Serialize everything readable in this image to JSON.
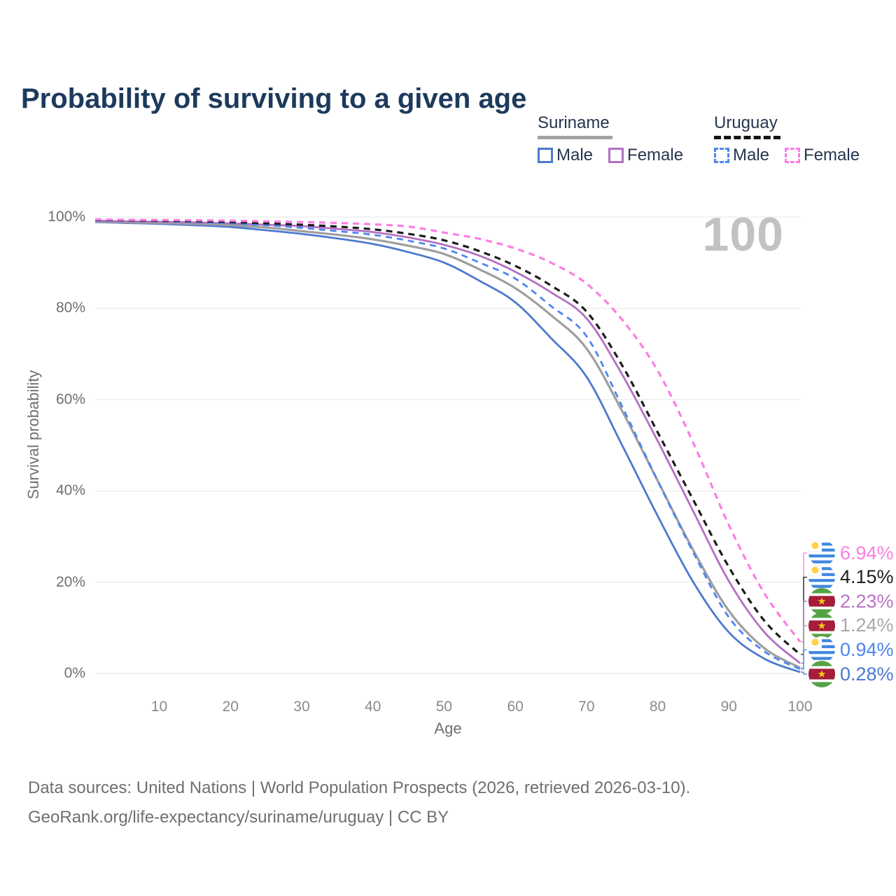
{
  "title": "Probability of surviving to a given age",
  "watermark": "100",
  "legend": {
    "groups": [
      {
        "label": "Suriname",
        "underline": {
          "style": "solid",
          "color": "#a3a3a3"
        },
        "items": [
          {
            "label": "Male",
            "color": "#4c79cf",
            "dash": false
          },
          {
            "label": "Female",
            "color": "#b271c2",
            "dash": false
          }
        ]
      },
      {
        "label": "Uruguay",
        "underline": {
          "style": "dashed",
          "color": "#151515"
        },
        "items": [
          {
            "label": "Male",
            "color": "#4d86f0",
            "dash": true
          },
          {
            "label": "Female",
            "color": "#fb7ee3",
            "dash": true
          }
        ]
      }
    ]
  },
  "axes": {
    "y": {
      "title": "Survival probability",
      "ticks": [
        "0%",
        "20%",
        "40%",
        "60%",
        "80%",
        "100%"
      ],
      "tick_values": [
        0,
        20,
        40,
        60,
        80,
        100
      ]
    },
    "x": {
      "title": "Age",
      "ticks": [
        "10",
        "20",
        "30",
        "40",
        "50",
        "60",
        "70",
        "80",
        "90",
        "100"
      ],
      "tick_values": [
        10,
        20,
        30,
        40,
        50,
        60,
        70,
        80,
        90,
        100
      ]
    }
  },
  "chart_data": {
    "type": "line",
    "title": "Probability of surviving to a given age",
    "xlabel": "Age",
    "ylabel": "Survival probability",
    "xlim": [
      1,
      100
    ],
    "ylim": [
      0,
      100
    ],
    "grid": "horizontal",
    "ages": [
      1,
      5,
      10,
      15,
      20,
      25,
      30,
      35,
      40,
      45,
      50,
      55,
      60,
      65,
      70,
      75,
      80,
      85,
      90,
      95,
      100
    ],
    "series": [
      {
        "name": "Suriname Male",
        "country": "Suriname",
        "sex": "male",
        "color": "#4c79cf",
        "dash": false,
        "width": 2.8,
        "values": [
          98.9,
          98.7,
          98.5,
          98.2,
          97.8,
          97.1,
          96.3,
          95.3,
          94.1,
          92.3,
          90.0,
          86.0,
          81.3,
          73.5,
          65.0,
          50.0,
          34.5,
          20.0,
          9.0,
          3.2,
          0.28
        ]
      },
      {
        "name": "Suriname",
        "country": "Suriname",
        "sex": "both",
        "color": "#9e9e9e",
        "dash": false,
        "width": 3.2,
        "values": [
          99.0,
          98.85,
          98.7,
          98.5,
          98.2,
          97.7,
          96.9,
          96.1,
          95.1,
          93.7,
          91.9,
          88.5,
          84.4,
          78.5,
          71.2,
          57.5,
          42.2,
          27.0,
          13.7,
          5.5,
          1.24
        ]
      },
      {
        "name": "Suriname Female",
        "country": "Suriname",
        "sex": "female",
        "color": "#b271c2",
        "dash": false,
        "width": 2.8,
        "values": [
          99.2,
          99.05,
          98.95,
          98.8,
          98.6,
          98.3,
          98.0,
          97.4,
          96.7,
          95.5,
          93.9,
          91.5,
          88.0,
          83.5,
          77.8,
          65.5,
          50.9,
          35.5,
          20.2,
          9.0,
          2.23
        ]
      },
      {
        "name": "Uruguay Male",
        "country": "Uruguay",
        "sex": "male",
        "color": "#4d86f0",
        "dash": true,
        "width": 2.8,
        "values": [
          99.3,
          99.2,
          99.1,
          98.9,
          98.6,
          98.2,
          97.6,
          96.9,
          96.1,
          94.8,
          93.1,
          90.0,
          86.5,
          80.5,
          73.9,
          58.5,
          42.2,
          26.5,
          12.3,
          4.8,
          0.94
        ]
      },
      {
        "name": "Uruguay",
        "country": "Uruguay",
        "sex": "both",
        "color": "#1c1c1c",
        "dash": true,
        "width": 3.2,
        "values": [
          99.4,
          99.3,
          99.2,
          99.1,
          98.9,
          98.6,
          98.3,
          97.9,
          97.3,
          96.3,
          94.9,
          92.5,
          89.3,
          85.0,
          79.3,
          67.5,
          52.8,
          38.0,
          23.3,
          11.5,
          4.15
        ]
      },
      {
        "name": "Uruguay Female",
        "country": "Uruguay",
        "sex": "female",
        "color": "#fb7ee3",
        "dash": true,
        "width": 3.2,
        "values": [
          99.5,
          99.4,
          99.35,
          99.3,
          99.2,
          99.05,
          98.9,
          98.7,
          98.4,
          97.9,
          96.6,
          95.2,
          93.1,
          90.0,
          85.4,
          77.5,
          66.3,
          50.5,
          32.5,
          17.5,
          6.94
        ]
      }
    ]
  },
  "end_labels": [
    {
      "flag": "uruguay",
      "series": "Uruguay Female",
      "value": "6.94%",
      "color": "#fb7ee3"
    },
    {
      "flag": "uruguay",
      "series": "Uruguay",
      "value": "4.15%",
      "color": "#1f1f1f"
    },
    {
      "flag": "suriname",
      "series": "Suriname Female",
      "value": "2.23%",
      "color": "#bb72c9"
    },
    {
      "flag": "suriname",
      "series": "Suriname",
      "value": "1.24%",
      "color": "#a9a9a9"
    },
    {
      "flag": "uruguay",
      "series": "Uruguay Male",
      "value": "0.94%",
      "color": "#4d86f0"
    },
    {
      "flag": "suriname",
      "series": "Suriname Male",
      "value": "0.28%",
      "color": "#4c79cf"
    }
  ],
  "footer": {
    "line1": "Data sources: United Nations | World Population Prospects (2026, retrieved 2026-03-10).",
    "line2": "GeoRank.org/life-expectancy/suriname/uruguay | CC BY"
  }
}
